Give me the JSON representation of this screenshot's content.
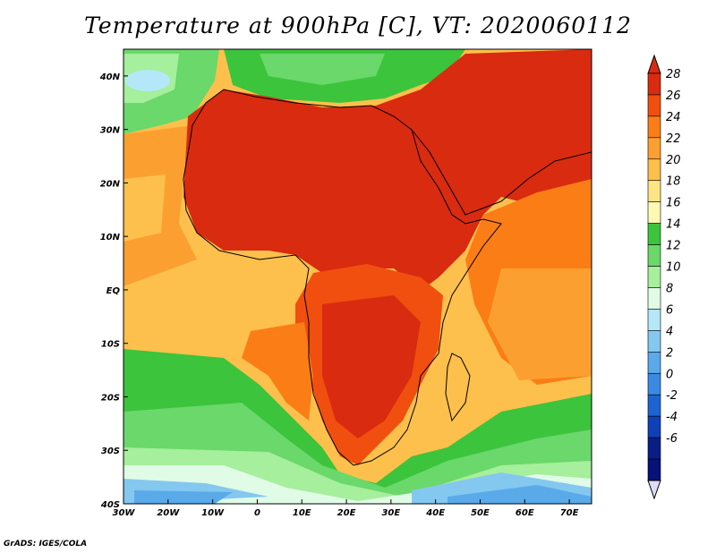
{
  "title": "Temperature at 900hPa [C], VT: 2020060112",
  "credit": "GrADS: IGES/COLA",
  "map": {
    "lon_range": [
      -30,
      75
    ],
    "lat_range": [
      -40,
      45
    ],
    "x_ticks": [
      {
        "lon": -30,
        "label": "30W"
      },
      {
        "lon": -20,
        "label": "20W"
      },
      {
        "lon": -10,
        "label": "10W"
      },
      {
        "lon": 0,
        "label": "0"
      },
      {
        "lon": 10,
        "label": "10E"
      },
      {
        "lon": 20,
        "label": "20E"
      },
      {
        "lon": 30,
        "label": "30E"
      },
      {
        "lon": 40,
        "label": "40E"
      },
      {
        "lon": 50,
        "label": "50E"
      },
      {
        "lon": 60,
        "label": "60E"
      },
      {
        "lon": 70,
        "label": "70E"
      }
    ],
    "y_ticks": [
      {
        "lat": 40,
        "label": "40N"
      },
      {
        "lat": 30,
        "label": "30N"
      },
      {
        "lat": 20,
        "label": "20N"
      },
      {
        "lat": 10,
        "label": "10N"
      },
      {
        "lat": 0,
        "label": "EQ"
      },
      {
        "lat": -10,
        "label": "10S"
      },
      {
        "lat": -20,
        "label": "20S"
      },
      {
        "lat": -30,
        "label": "30S"
      },
      {
        "lat": -40,
        "label": "40S"
      }
    ]
  },
  "colorbar": {
    "levels": [
      "28",
      "26",
      "24",
      "22",
      "20",
      "18",
      "16",
      "14",
      "12",
      "10",
      "8",
      "6",
      "4",
      "2",
      "0",
      "-2",
      "-4",
      "-6"
    ],
    "colors": [
      "#d92b10",
      "#f04f10",
      "#fa7d16",
      "#fba030",
      "#fdc04c",
      "#fee584",
      "#fdf8b4",
      "#3cc43c",
      "#6ad86a",
      "#a6ef9c",
      "#e0fce6",
      "#b4e8f8",
      "#84c8f0",
      "#5aaaea",
      "#3a8ae4",
      "#1c64d2",
      "#1040b8",
      "#0a1e88",
      "#08107a"
    ],
    "top_color": "#d92b10",
    "bottom_color": "#ddddf8"
  }
}
